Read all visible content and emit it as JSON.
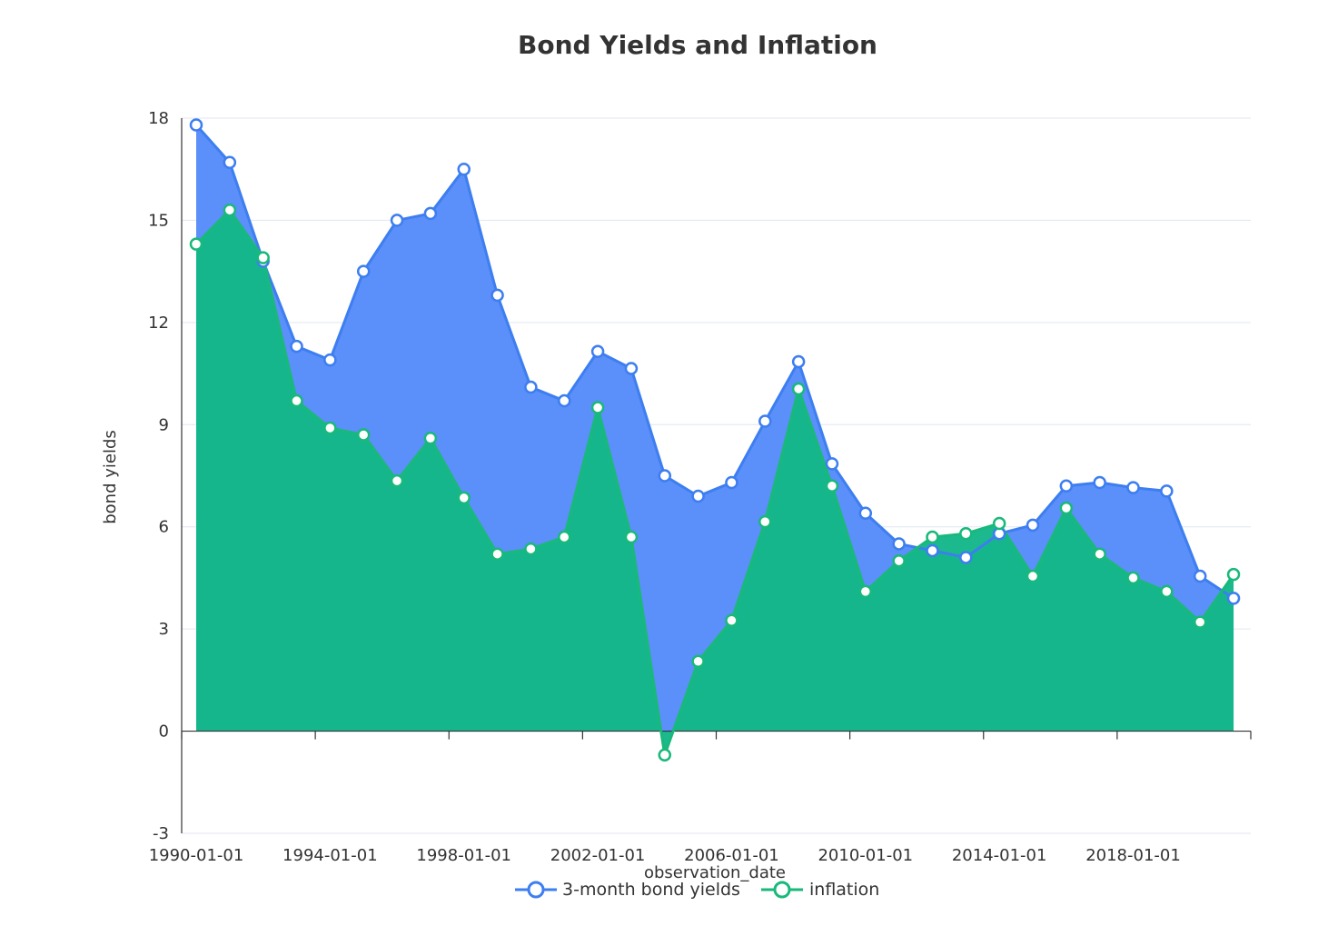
{
  "chart_data": {
    "type": "area",
    "title": "Bond Yields and Inflation",
    "xlabel": "observation_date",
    "ylabel": "bond yields",
    "ylim": [
      -3,
      18
    ],
    "y_ticks": [
      -3,
      0,
      3,
      6,
      9,
      12,
      15,
      18
    ],
    "x_tick_labels": [
      "1990-01-01",
      "1994-01-01",
      "1998-01-01",
      "2002-01-01",
      "2006-01-01",
      "2010-01-01",
      "2014-01-01",
      "2018-01-01"
    ],
    "x": [
      "1990-01-01",
      "1991-01-01",
      "1992-01-01",
      "1993-01-01",
      "1994-01-01",
      "1995-01-01",
      "1996-01-01",
      "1997-01-01",
      "1998-01-01",
      "1999-01-01",
      "2000-01-01",
      "2001-01-01",
      "2002-01-01",
      "2003-01-01",
      "2004-01-01",
      "2005-01-01",
      "2006-01-01",
      "2007-01-01",
      "2008-01-01",
      "2009-01-01",
      "2010-01-01",
      "2011-01-01",
      "2012-01-01",
      "2013-01-01",
      "2014-01-01",
      "2015-01-01",
      "2016-01-01",
      "2017-01-01",
      "2018-01-01",
      "2019-01-01",
      "2020-01-01",
      "2021-01-01"
    ],
    "grid": true,
    "legend_position": "bottom-center",
    "series": [
      {
        "name": "3-month bond yields",
        "color": "#5b8ff9",
        "line_color": "#3d7ef0",
        "values": [
          17.8,
          16.7,
          13.8,
          11.3,
          10.9,
          13.5,
          15.0,
          15.2,
          16.5,
          12.8,
          10.1,
          9.7,
          11.15,
          10.65,
          7.5,
          6.9,
          7.3,
          9.1,
          10.85,
          7.85,
          6.4,
          5.5,
          5.3,
          5.1,
          5.8,
          6.05,
          7.2,
          7.3,
          7.15,
          7.05,
          4.55,
          3.9
        ]
      },
      {
        "name": "inflation",
        "color": "#14b789",
        "line_color": "#18b97a",
        "values": [
          14.3,
          15.3,
          13.9,
          9.7,
          8.9,
          8.7,
          7.35,
          8.6,
          6.85,
          5.2,
          5.35,
          5.7,
          9.5,
          5.7,
          -0.7,
          2.05,
          3.25,
          6.15,
          10.05,
          7.2,
          4.1,
          5.0,
          5.7,
          5.8,
          6.1,
          4.55,
          6.55,
          5.2,
          4.5,
          4.1,
          3.2,
          4.6
        ]
      }
    ]
  }
}
